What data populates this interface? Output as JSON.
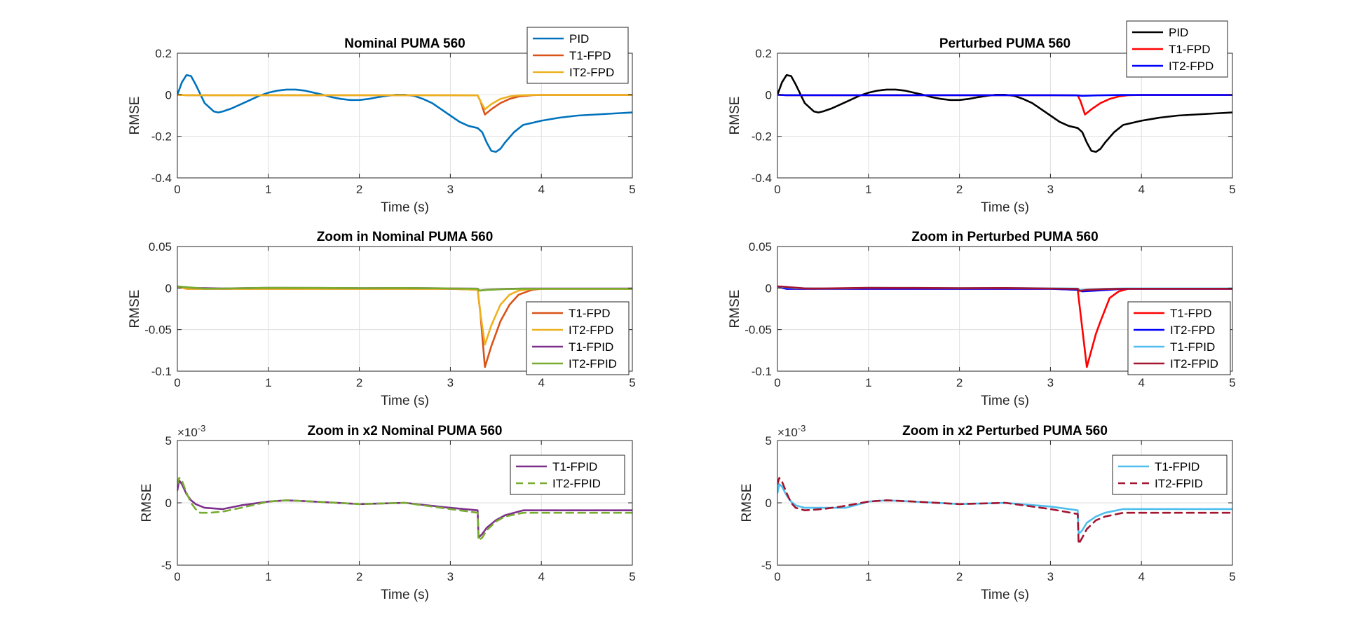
{
  "chart_data": [
    {
      "type": "line",
      "title": "Nominal PUMA 560",
      "xlabel": "Time (s)",
      "ylabel": "RMSE",
      "xlim": [
        0,
        5
      ],
      "ylim": [
        -0.4,
        0.2
      ],
      "xticks": [
        0,
        1,
        2,
        3,
        4,
        5
      ],
      "yticks": [
        -0.4,
        -0.2,
        0,
        0.2
      ],
      "ytick_labels": [
        "-0.4",
        "-0.2",
        "0",
        "0.2"
      ],
      "exponent_label": "",
      "grid": true,
      "legend": "top-right",
      "series": [
        {
          "name": "PID",
          "color": "#0072BD",
          "dash": "solid",
          "x": [
            0,
            0.05,
            0.1,
            0.15,
            0.2,
            0.3,
            0.4,
            0.45,
            0.5,
            0.6,
            0.7,
            0.8,
            0.9,
            1.0,
            1.1,
            1.2,
            1.3,
            1.4,
            1.5,
            1.6,
            1.7,
            1.8,
            1.9,
            2.0,
            2.1,
            2.2,
            2.3,
            2.4,
            2.5,
            2.6,
            2.7,
            2.8,
            2.9,
            3.0,
            3.1,
            3.2,
            3.3,
            3.35,
            3.4,
            3.45,
            3.5,
            3.55,
            3.6,
            3.7,
            3.8,
            4.0,
            4.2,
            4.4,
            4.6,
            4.8,
            5.0
          ],
          "y": [
            0,
            0.06,
            0.095,
            0.09,
            0.05,
            -0.04,
            -0.08,
            -0.085,
            -0.08,
            -0.065,
            -0.045,
            -0.025,
            -0.005,
            0.01,
            0.02,
            0.025,
            0.025,
            0.02,
            0.01,
            0.0,
            -0.012,
            -0.02,
            -0.025,
            -0.025,
            -0.02,
            -0.012,
            -0.005,
            0.0,
            0.0,
            -0.005,
            -0.02,
            -0.04,
            -0.07,
            -0.1,
            -0.13,
            -0.15,
            -0.16,
            -0.18,
            -0.23,
            -0.27,
            -0.275,
            -0.26,
            -0.23,
            -0.18,
            -0.145,
            -0.125,
            -0.11,
            -0.1,
            -0.095,
            -0.09,
            -0.085
          ]
        },
        {
          "name": "T1-FPD",
          "color": "#D95319",
          "dash": "solid",
          "x": [
            0,
            0.1,
            3.0,
            3.3,
            3.33,
            3.38,
            3.45,
            3.55,
            3.65,
            3.75,
            3.9,
            4.0,
            5.0
          ],
          "y": [
            0,
            -0.002,
            -0.002,
            -0.003,
            -0.03,
            -0.095,
            -0.07,
            -0.04,
            -0.02,
            -0.008,
            -0.002,
            -0.001,
            -0.001
          ]
        },
        {
          "name": "IT2-FPD",
          "color": "#EDB120",
          "dash": "solid",
          "x": [
            0,
            0.1,
            3.0,
            3.3,
            3.33,
            3.38,
            3.45,
            3.55,
            3.65,
            3.75,
            3.9,
            4.0,
            5.0
          ],
          "y": [
            0,
            -0.002,
            -0.002,
            -0.003,
            -0.03,
            -0.07,
            -0.045,
            -0.02,
            -0.008,
            -0.003,
            -0.001,
            -0.001,
            -0.001
          ]
        }
      ]
    },
    {
      "type": "line",
      "title": "Perturbed PUMA 560",
      "xlabel": "Time (s)",
      "ylabel": "RMSE",
      "xlim": [
        0,
        5
      ],
      "ylim": [
        -0.4,
        0.2
      ],
      "xticks": [
        0,
        1,
        2,
        3,
        4,
        5
      ],
      "yticks": [
        -0.4,
        -0.2,
        0,
        0.2
      ],
      "ytick_labels": [
        "-0.4",
        "-0.2",
        "0",
        "0.2"
      ],
      "exponent_label": "",
      "grid": true,
      "legend": "top-right",
      "series": [
        {
          "name": "PID",
          "color": "#000000",
          "dash": "solid",
          "x": [
            0,
            0.05,
            0.1,
            0.15,
            0.2,
            0.3,
            0.4,
            0.45,
            0.5,
            0.6,
            0.7,
            0.8,
            0.9,
            1.0,
            1.1,
            1.2,
            1.3,
            1.4,
            1.5,
            1.6,
            1.7,
            1.8,
            1.9,
            2.0,
            2.1,
            2.2,
            2.3,
            2.4,
            2.5,
            2.6,
            2.7,
            2.8,
            2.9,
            3.0,
            3.1,
            3.2,
            3.3,
            3.35,
            3.4,
            3.45,
            3.5,
            3.55,
            3.6,
            3.7,
            3.8,
            4.0,
            4.2,
            4.4,
            4.6,
            4.8,
            5.0
          ],
          "y": [
            0,
            0.06,
            0.095,
            0.09,
            0.05,
            -0.04,
            -0.08,
            -0.085,
            -0.08,
            -0.065,
            -0.045,
            -0.025,
            -0.005,
            0.01,
            0.02,
            0.025,
            0.025,
            0.02,
            0.01,
            0.0,
            -0.012,
            -0.02,
            -0.025,
            -0.025,
            -0.02,
            -0.012,
            -0.005,
            0.0,
            0.0,
            -0.005,
            -0.02,
            -0.04,
            -0.07,
            -0.1,
            -0.13,
            -0.15,
            -0.16,
            -0.18,
            -0.23,
            -0.27,
            -0.275,
            -0.26,
            -0.23,
            -0.18,
            -0.145,
            -0.125,
            -0.11,
            -0.1,
            -0.095,
            -0.09,
            -0.085
          ]
        },
        {
          "name": "T1-FPD",
          "color": "#FF0000",
          "dash": "solid",
          "x": [
            0,
            0.1,
            3.0,
            3.3,
            3.33,
            3.38,
            3.45,
            3.55,
            3.65,
            3.75,
            3.85,
            4.0,
            5.0
          ],
          "y": [
            0,
            -0.002,
            -0.002,
            -0.003,
            -0.03,
            -0.095,
            -0.07,
            -0.04,
            -0.02,
            -0.008,
            -0.002,
            -0.001,
            -0.001
          ]
        },
        {
          "name": "IT2-FPD",
          "color": "#0000FF",
          "dash": "solid",
          "x": [
            0,
            0.1,
            3.0,
            3.3,
            3.35,
            3.5,
            3.8,
            4.0,
            5.0
          ],
          "y": [
            0,
            -0.002,
            -0.002,
            -0.003,
            -0.005,
            -0.003,
            -0.001,
            -0.001,
            -0.001
          ]
        }
      ]
    },
    {
      "type": "line",
      "title": "Zoom in Nominal PUMA 560",
      "xlabel": "Time (s)",
      "ylabel": "RMSE",
      "xlim": [
        0,
        5
      ],
      "ylim": [
        -0.1,
        0.05
      ],
      "xticks": [
        0,
        1,
        2,
        3,
        4,
        5
      ],
      "yticks": [
        -0.1,
        -0.05,
        0,
        0.05
      ],
      "ytick_labels": [
        "-0.1",
        "-0.05",
        "0",
        "0.05"
      ],
      "exponent_label": "",
      "grid": true,
      "legend": "bottom-right",
      "series": [
        {
          "name": "T1-FPD",
          "color": "#D95319",
          "dash": "solid",
          "x": [
            0,
            0.1,
            3.0,
            3.3,
            3.33,
            3.38,
            3.45,
            3.55,
            3.65,
            3.75,
            3.9,
            4.0,
            5.0
          ],
          "y": [
            0.002,
            -0.001,
            -0.001,
            -0.002,
            -0.03,
            -0.095,
            -0.07,
            -0.04,
            -0.02,
            -0.008,
            -0.002,
            -0.001,
            -0.001
          ]
        },
        {
          "name": "IT2-FPD",
          "color": "#EDB120",
          "dash": "solid",
          "x": [
            0,
            0.1,
            3.0,
            3.3,
            3.33,
            3.38,
            3.45,
            3.55,
            3.65,
            3.75,
            3.9,
            4.0,
            5.0
          ],
          "y": [
            0.002,
            -0.001,
            -0.001,
            -0.002,
            -0.03,
            -0.068,
            -0.045,
            -0.02,
            -0.008,
            -0.003,
            -0.001,
            -0.001,
            -0.001
          ]
        },
        {
          "name": "T1-FPID",
          "color": "#7E2F8E",
          "dash": "solid",
          "x": [
            0,
            0.05,
            0.2,
            0.5,
            1.0,
            1.5,
            2.0,
            2.5,
            3.0,
            3.3,
            3.32,
            3.4,
            3.6,
            3.8,
            4.0,
            5.0
          ],
          "y": [
            0.002,
            0.0015,
            0.0,
            -0.0005,
            0.0002,
            0.0001,
            -0.0001,
            0.0,
            -0.0005,
            -0.0007,
            -0.003,
            -0.002,
            -0.001,
            -0.0006,
            -0.0006,
            -0.0006
          ]
        },
        {
          "name": "IT2-FPID",
          "color": "#77AC30",
          "dash": "solid",
          "x": [
            0,
            0.05,
            0.3,
            0.5,
            1.0,
            1.5,
            2.0,
            2.5,
            3.0,
            3.3,
            3.32,
            3.4,
            3.6,
            3.8,
            4.0,
            5.0
          ],
          "y": [
            0.002,
            0.0015,
            -0.0007,
            -0.0006,
            0.0002,
            0.0001,
            -0.0001,
            0.0,
            -0.0005,
            -0.0008,
            -0.003,
            -0.0022,
            -0.0012,
            -0.0008,
            -0.0008,
            -0.0008
          ]
        }
      ]
    },
    {
      "type": "line",
      "title": "Zoom in Perturbed PUMA 560",
      "xlabel": "Time (s)",
      "ylabel": "RMSE",
      "xlim": [
        0,
        5
      ],
      "ylim": [
        -0.1,
        0.05
      ],
      "xticks": [
        0,
        1,
        2,
        3,
        4,
        5
      ],
      "yticks": [
        -0.1,
        -0.05,
        0,
        0.05
      ],
      "ytick_labels": [
        "-0.1",
        "-0.05",
        "0",
        "0.05"
      ],
      "exponent_label": "",
      "grid": true,
      "legend": "bottom-right",
      "series": [
        {
          "name": "T1-FPD",
          "color": "#FF0000",
          "dash": "solid",
          "x": [
            0,
            0.1,
            3.0,
            3.3,
            3.33,
            3.4,
            3.45,
            3.5,
            3.55,
            3.65,
            3.75,
            3.85,
            4.0,
            5.0
          ],
          "y": [
            0.002,
            -0.001,
            -0.001,
            -0.002,
            -0.03,
            -0.095,
            -0.075,
            -0.055,
            -0.04,
            -0.012,
            -0.004,
            -0.001,
            -0.001,
            -0.001
          ]
        },
        {
          "name": "IT2-FPD",
          "color": "#0000FF",
          "dash": "solid",
          "x": [
            0,
            0.1,
            3.0,
            3.3,
            3.35,
            3.5,
            3.8,
            4.0,
            5.0
          ],
          "y": [
            0.002,
            -0.001,
            -0.001,
            -0.002,
            -0.004,
            -0.003,
            -0.001,
            -0.001,
            -0.001
          ]
        },
        {
          "name": "T1-FPID",
          "color": "#4DBEEE",
          "dash": "solid",
          "x": [
            0,
            0.05,
            0.2,
            0.5,
            0.75,
            1.0,
            1.5,
            2.0,
            2.5,
            3.0,
            3.3,
            3.32,
            3.4,
            3.6,
            3.8,
            4.0,
            5.0
          ],
          "y": [
            0.002,
            0.0015,
            -0.0002,
            -0.0005,
            -0.0004,
            0.0002,
            0.0001,
            -0.0001,
            0.0,
            -0.0004,
            -0.0006,
            -0.0025,
            -0.0018,
            -0.0009,
            -0.0005,
            -0.0005,
            -0.0005
          ]
        },
        {
          "name": "IT2-FPID",
          "color": "#A2142F",
          "dash": "solid",
          "x": [
            0,
            0.05,
            0.3,
            0.5,
            1.0,
            1.5,
            2.0,
            2.5,
            3.0,
            3.3,
            3.32,
            3.4,
            3.6,
            3.8,
            4.0,
            5.0
          ],
          "y": [
            0.002,
            0.0018,
            -0.0005,
            -0.0005,
            0.0002,
            0.0001,
            -0.0001,
            0.0,
            -0.0006,
            -0.0009,
            -0.0035,
            -0.0022,
            -0.0012,
            -0.0008,
            -0.0008,
            -0.0008
          ]
        }
      ]
    },
    {
      "type": "line",
      "title": "Zoom in x2 Nominal PUMA 560",
      "xlabel": "Time (s)",
      "ylabel": "RMSE",
      "xlim": [
        0,
        5
      ],
      "ylim": [
        -0.005,
        0.005
      ],
      "xticks": [
        0,
        1,
        2,
        3,
        4,
        5
      ],
      "yticks": [
        -0.005,
        0,
        0.005
      ],
      "ytick_labels": [
        "-5",
        "0",
        "5"
      ],
      "exponent_label": "×10^-3",
      "grid": true,
      "legend": "top-right",
      "series": [
        {
          "name": "T1-FPID",
          "color": "#7E2F8E",
          "dash": "solid",
          "x": [
            0,
            0.02,
            0.05,
            0.1,
            0.15,
            0.2,
            0.3,
            0.5,
            0.7,
            1.0,
            1.2,
            1.5,
            2.0,
            2.5,
            3.0,
            3.3,
            3.31,
            3.35,
            3.4,
            3.5,
            3.6,
            3.8,
            4.0,
            5.0
          ],
          "y": [
            0.001,
            0.0018,
            0.0015,
            0.0007,
            0.0002,
            -0.0001,
            -0.0004,
            -0.0005,
            -0.0002,
            0.0001,
            0.0002,
            0.0001,
            -0.0001,
            0.0,
            -0.0004,
            -0.0006,
            -0.0028,
            -0.0025,
            -0.002,
            -0.0014,
            -0.001,
            -0.0006,
            -0.0006,
            -0.0006
          ]
        },
        {
          "name": "IT2-FPID",
          "color": "#77AC30",
          "dash": "dashed",
          "x": [
            0,
            0.02,
            0.05,
            0.1,
            0.15,
            0.2,
            0.25,
            0.35,
            0.5,
            0.7,
            1.0,
            1.2,
            1.5,
            2.0,
            2.5,
            3.0,
            3.3,
            3.31,
            3.35,
            3.4,
            3.5,
            3.6,
            3.8,
            4.0,
            5.0
          ],
          "y": [
            0.0015,
            0.002,
            0.0018,
            0.0008,
            0.0,
            -0.0005,
            -0.0008,
            -0.0008,
            -0.0007,
            -0.0004,
            0.0001,
            0.0002,
            0.0001,
            -0.0001,
            0.0,
            -0.0005,
            -0.0008,
            -0.003,
            -0.0028,
            -0.0022,
            -0.0015,
            -0.0011,
            -0.0008,
            -0.0008,
            -0.0008
          ]
        }
      ]
    },
    {
      "type": "line",
      "title": "Zoom in x2 Perturbed PUMA 560",
      "xlabel": "Time (s)",
      "ylabel": "RMSE",
      "xlim": [
        0,
        5
      ],
      "ylim": [
        -0.005,
        0.005
      ],
      "xticks": [
        0,
        1,
        2,
        3,
        4,
        5
      ],
      "yticks": [
        -0.005,
        0,
        0.005
      ],
      "ytick_labels": [
        "-5",
        "0",
        "5"
      ],
      "exponent_label": "×10^-3",
      "grid": true,
      "legend": "top-right",
      "series": [
        {
          "name": "T1-FPID",
          "color": "#4DBEEE",
          "dash": "solid",
          "x": [
            0,
            0.02,
            0.05,
            0.1,
            0.15,
            0.2,
            0.3,
            0.5,
            0.75,
            1.0,
            1.2,
            1.5,
            2.0,
            2.5,
            3.0,
            3.3,
            3.31,
            3.35,
            3.4,
            3.5,
            3.6,
            3.8,
            4.0,
            5.0
          ],
          "y": [
            0.0008,
            0.0015,
            0.0013,
            0.0006,
            0.0001,
            -0.0002,
            -0.0004,
            -0.0004,
            -0.0004,
            0.0001,
            0.0002,
            0.0001,
            -0.0001,
            0.0,
            -0.0003,
            -0.0006,
            -0.0025,
            -0.0022,
            -0.0016,
            -0.0011,
            -0.0008,
            -0.0005,
            -0.0005,
            -0.0005
          ]
        },
        {
          "name": "IT2-FPID",
          "color": "#A2142F",
          "dash": "dashed",
          "x": [
            0,
            0.02,
            0.05,
            0.1,
            0.15,
            0.2,
            0.3,
            0.5,
            0.7,
            1.0,
            1.2,
            1.5,
            2.0,
            2.5,
            3.0,
            3.3,
            3.31,
            3.35,
            3.4,
            3.5,
            3.6,
            3.8,
            4.0,
            5.0
          ],
          "y": [
            0.0015,
            0.002,
            0.0017,
            0.0008,
            0.0,
            -0.0004,
            -0.0006,
            -0.0005,
            -0.0003,
            0.0001,
            0.0002,
            0.0001,
            -0.0001,
            0.0,
            -0.0005,
            -0.0009,
            -0.0033,
            -0.0028,
            -0.0021,
            -0.0014,
            -0.0011,
            -0.0008,
            -0.0008,
            -0.0008
          ]
        }
      ]
    }
  ]
}
